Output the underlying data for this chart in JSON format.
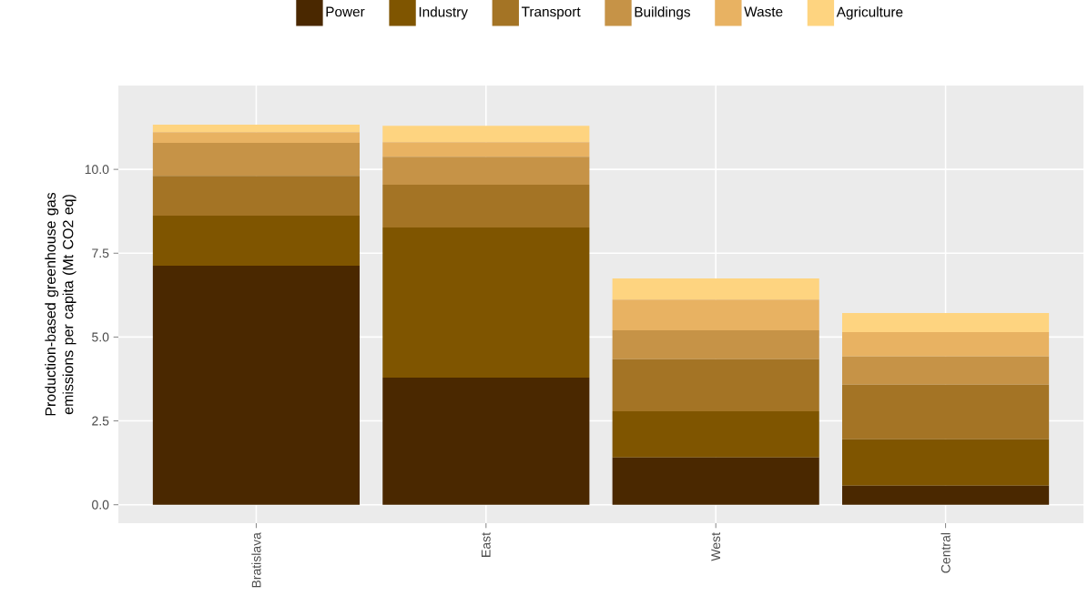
{
  "chart_data": {
    "type": "bar",
    "stacked": true,
    "ylabel": "Production-based greenhouse gas emissions per capita (Mt CO2 eq)",
    "categories": [
      "Bratislava",
      "East",
      "West",
      "Central"
    ],
    "series": [
      {
        "name": "Power",
        "color": "#4a2800",
        "values": [
          7.13,
          3.79,
          1.41,
          0.57
        ]
      },
      {
        "name": "Industry",
        "color": "#7f5500",
        "values": [
          1.49,
          4.48,
          1.38,
          1.38
        ]
      },
      {
        "name": "Transport",
        "color": "#a47425",
        "values": [
          1.19,
          1.27,
          1.55,
          1.63
        ]
      },
      {
        "name": "Buildings",
        "color": "#c69347",
        "values": [
          0.98,
          0.84,
          0.86,
          0.84
        ]
      },
      {
        "name": "Waste",
        "color": "#e8b262",
        "values": [
          0.32,
          0.43,
          0.92,
          0.73
        ]
      },
      {
        "name": "Agriculture",
        "color": "#fed480",
        "values": [
          0.22,
          0.49,
          0.63,
          0.57
        ]
      }
    ],
    "ylim": [
      -0.55,
      12.5
    ],
    "yticks": [
      {
        "value": 0,
        "label": "0.0"
      },
      {
        "value": 2.5,
        "label": "2.5"
      },
      {
        "value": 5,
        "label": "5.0"
      },
      {
        "value": 7.5,
        "label": "7.5"
      },
      {
        "value": 10,
        "label": "10.0"
      }
    ],
    "grid": true,
    "legend": "top"
  }
}
